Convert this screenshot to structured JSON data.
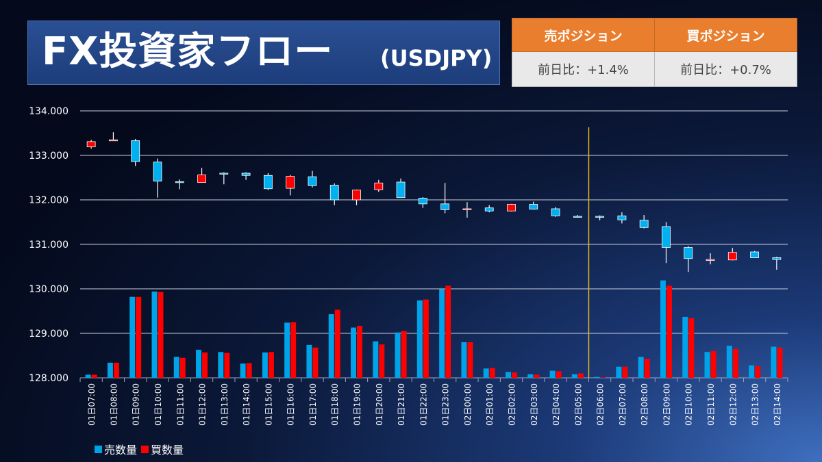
{
  "title": {
    "main": "FX投資家フロー",
    "sub": "(USDJPY)"
  },
  "position_table": {
    "sell_header": "売ポジション",
    "buy_header": "買ポジション",
    "sell_change": "前日比：+1.4%",
    "buy_change": "前日比：+0.7%",
    "header_color": "#E97F2E"
  },
  "chart_data": {
    "type": "candlestick+bar",
    "ylim": [
      128,
      134
    ],
    "yticks": [
      "128.000",
      "129.000",
      "130.000",
      "131.000",
      "132.000",
      "133.000",
      "134.000"
    ],
    "grid": true,
    "categories": [
      "01日07:00",
      "01日08:00",
      "01日09:00",
      "01日10:00",
      "01日11:00",
      "01日12:00",
      "01日13:00",
      "01日14:00",
      "01日15:00",
      "01日16:00",
      "01日17:00",
      "01日18:00",
      "01日19:00",
      "01日20:00",
      "01日21:00",
      "01日22:00",
      "01日23:00",
      "02日00:00",
      "02日01:00",
      "02日02:00",
      "02日03:00",
      "02日04:00",
      "02日05:00",
      "02日06:00",
      "02日07:00",
      "02日08:00",
      "02日09:00",
      "02日10:00",
      "02日11:00",
      "02日12:00",
      "02日13:00",
      "02日14:00"
    ],
    "candles": [
      {
        "o": 133.19,
        "h": 133.35,
        "l": 133.15,
        "c": 133.31
      },
      {
        "o": 133.33,
        "h": 133.52,
        "l": 133.33,
        "c": 133.35
      },
      {
        "o": 133.33,
        "h": 133.37,
        "l": 132.76,
        "c": 132.86
      },
      {
        "o": 132.85,
        "h": 132.93,
        "l": 132.05,
        "c": 132.42
      },
      {
        "o": 132.41,
        "h": 132.46,
        "l": 132.24,
        "c": 132.4
      },
      {
        "o": 132.39,
        "h": 132.72,
        "l": 132.39,
        "c": 132.56
      },
      {
        "o": 132.6,
        "h": 132.62,
        "l": 132.35,
        "c": 132.59
      },
      {
        "o": 132.6,
        "h": 132.62,
        "l": 132.45,
        "c": 132.55
      },
      {
        "o": 132.55,
        "h": 132.6,
        "l": 132.22,
        "c": 132.25
      },
      {
        "o": 132.26,
        "h": 132.56,
        "l": 132.1,
        "c": 132.53
      },
      {
        "o": 132.52,
        "h": 132.65,
        "l": 132.28,
        "c": 132.32
      },
      {
        "o": 132.33,
        "h": 132.37,
        "l": 131.88,
        "c": 132.0
      },
      {
        "o": 132.0,
        "h": 132.23,
        "l": 131.88,
        "c": 132.22
      },
      {
        "o": 132.23,
        "h": 132.45,
        "l": 132.18,
        "c": 132.38
      },
      {
        "o": 132.4,
        "h": 132.48,
        "l": 132.05,
        "c": 132.05
      },
      {
        "o": 132.04,
        "h": 132.06,
        "l": 131.82,
        "c": 131.91
      },
      {
        "o": 131.91,
        "h": 132.38,
        "l": 131.7,
        "c": 131.78
      },
      {
        "o": 131.8,
        "h": 131.95,
        "l": 131.6,
        "c": 131.8
      },
      {
        "o": 131.82,
        "h": 131.88,
        "l": 131.72,
        "c": 131.75
      },
      {
        "o": 131.75,
        "h": 131.91,
        "l": 131.74,
        "c": 131.9
      },
      {
        "o": 131.9,
        "h": 131.96,
        "l": 131.78,
        "c": 131.79
      },
      {
        "o": 131.8,
        "h": 131.84,
        "l": 131.62,
        "c": 131.64
      },
      {
        "o": 131.63,
        "h": 131.66,
        "l": 131.6,
        "c": 131.62
      },
      {
        "o": 131.63,
        "h": 131.65,
        "l": 131.54,
        "c": 131.62
      },
      {
        "o": 131.64,
        "h": 131.72,
        "l": 131.47,
        "c": 131.55
      },
      {
        "o": 131.54,
        "h": 131.66,
        "l": 131.36,
        "c": 131.38
      },
      {
        "o": 131.4,
        "h": 131.5,
        "l": 130.58,
        "c": 130.93
      },
      {
        "o": 130.93,
        "h": 130.96,
        "l": 130.38,
        "c": 130.68
      },
      {
        "o": 130.66,
        "h": 130.8,
        "l": 130.55,
        "c": 130.66
      },
      {
        "o": 130.65,
        "h": 130.92,
        "l": 130.64,
        "c": 130.82
      },
      {
        "o": 130.83,
        "h": 130.85,
        "l": 130.7,
        "c": 130.7
      },
      {
        "o": 130.7,
        "h": 130.72,
        "l": 130.43,
        "c": 130.66
      }
    ],
    "series": [
      {
        "name": "売数量",
        "color": "#00A2E8",
        "values": [
          0.07,
          0.34,
          1.82,
          1.94,
          0.47,
          0.63,
          0.58,
          0.32,
          0.57,
          1.24,
          0.74,
          1.43,
          1.13,
          0.82,
          1.02,
          1.74,
          1.99,
          0.8,
          0.21,
          0.13,
          0.08,
          0.16,
          0.08,
          0.02,
          0.25,
          0.47,
          2.19,
          1.37,
          0.58,
          0.72,
          0.28,
          0.7
        ]
      },
      {
        "name": "買数量",
        "color": "#FF0000",
        "values": [
          0.07,
          0.34,
          1.82,
          1.93,
          0.45,
          0.57,
          0.56,
          0.33,
          0.58,
          1.25,
          0.68,
          1.53,
          1.17,
          0.75,
          1.05,
          1.76,
          2.07,
          0.8,
          0.22,
          0.12,
          0.07,
          0.15,
          0.1,
          0.01,
          0.25,
          0.43,
          2.07,
          1.34,
          0.6,
          0.65,
          0.26,
          0.68
        ]
      }
    ],
    "marker_line_after": "02日05:00",
    "marker_color": "#E8B91C",
    "candle_up_color": "#FF0000",
    "candle_down_color": "#00B0F0",
    "legend": [
      "売数量",
      "買数量"
    ],
    "legend_placement": "bottom-left"
  }
}
